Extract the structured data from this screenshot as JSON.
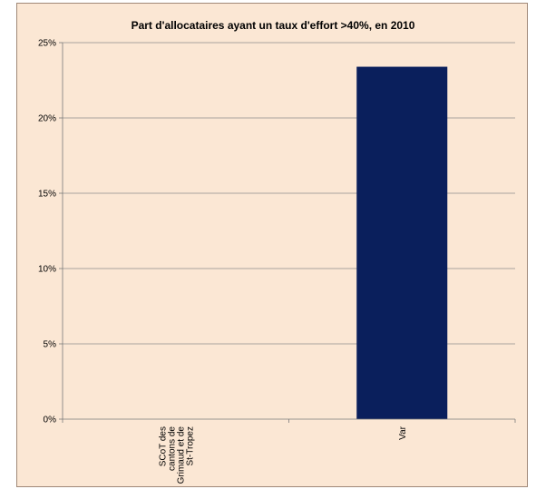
{
  "chart_data": {
    "type": "bar",
    "title": "Part d'allocataires ayant un taux d'effort >40%, en 2010",
    "xlabel": "",
    "ylabel": "",
    "categories": [
      [
        "SCoT des",
        "cantons de",
        "Grimaud et de",
        "St-Tropez"
      ],
      [
        "Var"
      ]
    ],
    "values": [
      null,
      23.4
    ],
    "ylim": [
      0,
      25
    ],
    "yticks": [
      0,
      5,
      10,
      15,
      20,
      25
    ],
    "ytick_labels": [
      "0%",
      "5%",
      "10%",
      "15%",
      "20%",
      "25%"
    ],
    "grid": true,
    "legend": "none",
    "colors": {
      "bar": "#0a1f5c",
      "background": "#fbe7d4",
      "grid": "#8c8c8c"
    }
  }
}
